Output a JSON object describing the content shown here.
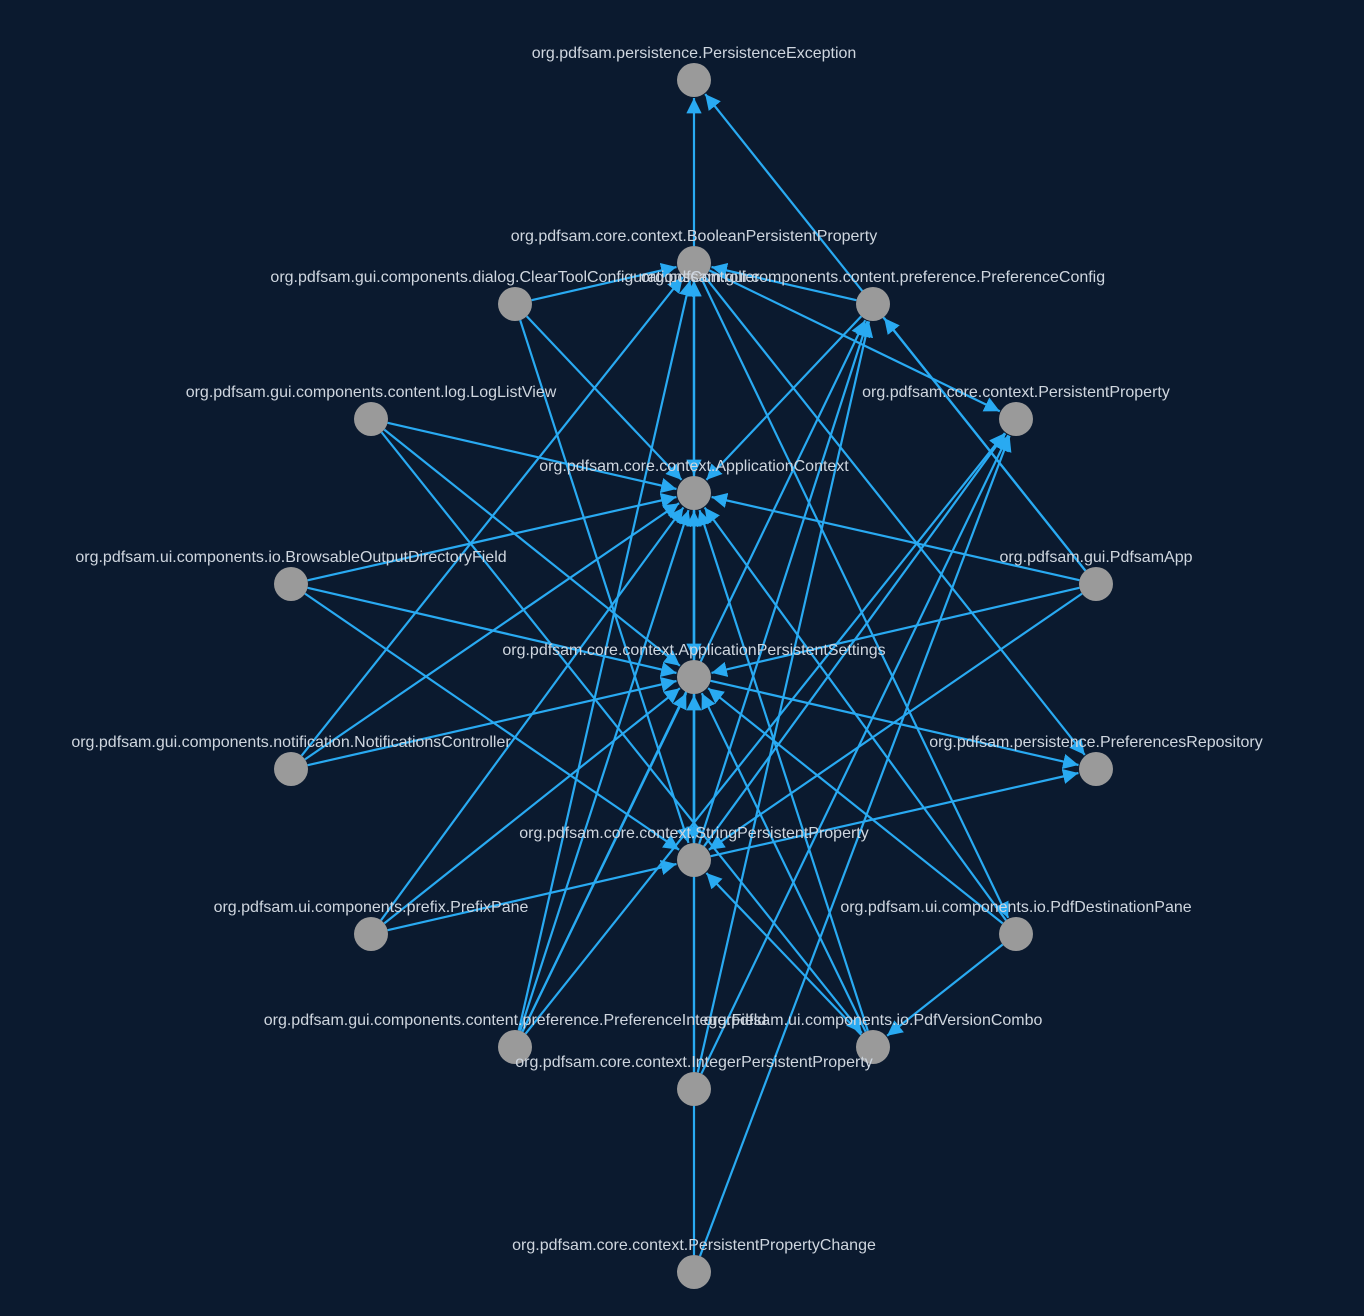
{
  "colors": {
    "background": "#0b1a2f",
    "edge": "#29aaf2",
    "node": "#9a9a9a",
    "label": "#cfd6df"
  },
  "nodes": [
    {
      "id": "persistence_exception",
      "label": "org.pdfsam.persistence.PersistenceException"
    },
    {
      "id": "boolean_persistent_property",
      "label": "org.pdfsam.core.context.BooleanPersistentProperty"
    },
    {
      "id": "clear_tool_config_controller",
      "label": "org.pdfsam.gui.components.dialog.ClearToolConfigurationsController"
    },
    {
      "id": "preference_config",
      "label": "org.pdfsam.gui.components.content.preference.PreferenceConfig"
    },
    {
      "id": "log_list_view",
      "label": "org.pdfsam.gui.components.content.log.LogListView"
    },
    {
      "id": "persistent_property",
      "label": "org.pdfsam.core.context.PersistentProperty"
    },
    {
      "id": "application_context",
      "label": "org.pdfsam.core.context.ApplicationContext"
    },
    {
      "id": "browsable_output_directory_field",
      "label": "org.pdfsam.ui.components.io.BrowsableOutputDirectoryField"
    },
    {
      "id": "pdfsam_app",
      "label": "org.pdfsam.gui.PdfsamApp"
    },
    {
      "id": "application_persistent_settings",
      "label": "org.pdfsam.core.context.ApplicationPersistentSettings"
    },
    {
      "id": "notifications_controller",
      "label": "org.pdfsam.gui.components.notification.NotificationsController"
    },
    {
      "id": "preferences_repository",
      "label": "org.pdfsam.persistence.PreferencesRepository"
    },
    {
      "id": "string_persistent_property",
      "label": "org.pdfsam.core.context.StringPersistentProperty"
    },
    {
      "id": "prefix_pane",
      "label": "org.pdfsam.ui.components.prefix.PrefixPane"
    },
    {
      "id": "pdf_destination_pane",
      "label": "org.pdfsam.ui.components.io.PdfDestinationPane"
    },
    {
      "id": "preference_integer_field",
      "label": "org.pdfsam.gui.components.content.preference.PreferenceIntegerField"
    },
    {
      "id": "pdf_version_combo",
      "label": "org.pdfsam.ui.components.io.PdfVersionCombo"
    },
    {
      "id": "integer_persistent_property",
      "label": "org.pdfsam.core.context.IntegerPersistentProperty"
    },
    {
      "id": "persistent_property_change",
      "label": "org.pdfsam.core.context.PersistentPropertyChange"
    }
  ],
  "edges": [
    {
      "source": "boolean_persistent_property",
      "target": "persistence_exception"
    },
    {
      "source": "pdfsam_app",
      "target": "persistence_exception"
    },
    {
      "source": "clear_tool_config_controller",
      "target": "boolean_persistent_property"
    },
    {
      "source": "application_persistent_settings",
      "target": "boolean_persistent_property"
    },
    {
      "source": "string_persistent_property",
      "target": "boolean_persistent_property"
    },
    {
      "source": "notifications_controller",
      "target": "boolean_persistent_property"
    },
    {
      "source": "preference_integer_field",
      "target": "boolean_persistent_property"
    },
    {
      "source": "boolean_persistent_property",
      "target": "persistent_property"
    },
    {
      "source": "boolean_persistent_property",
      "target": "preferences_repository"
    },
    {
      "source": "boolean_persistent_property",
      "target": "pdf_destination_pane"
    },
    {
      "source": "boolean_persistent_property",
      "target": "application_context"
    },
    {
      "source": "clear_tool_config_controller",
      "target": "application_context"
    },
    {
      "source": "clear_tool_config_controller",
      "target": "string_persistent_property"
    },
    {
      "source": "preference_config",
      "target": "boolean_persistent_property"
    },
    {
      "source": "preference_config",
      "target": "application_context"
    },
    {
      "source": "pdfsam_app",
      "target": "preference_config"
    },
    {
      "source": "log_list_view",
      "target": "application_context"
    },
    {
      "source": "log_list_view",
      "target": "application_persistent_settings"
    },
    {
      "source": "log_list_view",
      "target": "pdf_version_combo"
    },
    {
      "source": "browsable_output_directory_field",
      "target": "application_context"
    },
    {
      "source": "browsable_output_directory_field",
      "target": "application_persistent_settings"
    },
    {
      "source": "browsable_output_directory_field",
      "target": "string_persistent_property"
    },
    {
      "source": "notifications_controller",
      "target": "application_context"
    },
    {
      "source": "notifications_controller",
      "target": "application_persistent_settings"
    },
    {
      "source": "pdfsam_app",
      "target": "application_context"
    },
    {
      "source": "pdfsam_app",
      "target": "application_persistent_settings"
    },
    {
      "source": "pdfsam_app",
      "target": "string_persistent_property"
    },
    {
      "source": "application_context",
      "target": "application_persistent_settings"
    },
    {
      "source": "application_persistent_settings",
      "target": "preferences_repository"
    },
    {
      "source": "application_persistent_settings",
      "target": "string_persistent_property"
    },
    {
      "source": "string_persistent_property",
      "target": "application_context"
    },
    {
      "source": "string_persistent_property",
      "target": "persistent_property"
    },
    {
      "source": "string_persistent_property",
      "target": "preferences_repository"
    },
    {
      "source": "string_persistent_property",
      "target": "preference_config"
    },
    {
      "source": "prefix_pane",
      "target": "application_context"
    },
    {
      "source": "prefix_pane",
      "target": "application_persistent_settings"
    },
    {
      "source": "prefix_pane",
      "target": "string_persistent_property"
    },
    {
      "source": "pdf_destination_pane",
      "target": "application_context"
    },
    {
      "source": "pdf_destination_pane",
      "target": "application_persistent_settings"
    },
    {
      "source": "pdf_destination_pane",
      "target": "pdf_version_combo"
    },
    {
      "source": "preference_integer_field",
      "target": "application_context"
    },
    {
      "source": "preference_integer_field",
      "target": "application_persistent_settings"
    },
    {
      "source": "preference_integer_field",
      "target": "preference_config"
    },
    {
      "source": "preference_integer_field",
      "target": "persistent_property"
    },
    {
      "source": "pdf_version_combo",
      "target": "application_context"
    },
    {
      "source": "pdf_version_combo",
      "target": "application_persistent_settings"
    },
    {
      "source": "pdf_version_combo",
      "target": "string_persistent_property"
    },
    {
      "source": "integer_persistent_property",
      "target": "application_context"
    },
    {
      "source": "integer_persistent_property",
      "target": "preference_config"
    },
    {
      "source": "integer_persistent_property",
      "target": "persistent_property"
    },
    {
      "source": "persistent_property_change",
      "target": "application_persistent_settings"
    },
    {
      "source": "persistent_property_change",
      "target": "persistent_property"
    }
  ]
}
